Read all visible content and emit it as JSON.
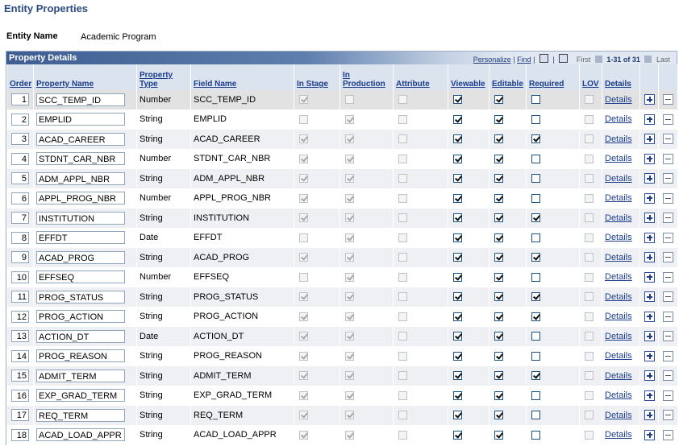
{
  "header": {
    "title": "Entity Properties",
    "entity_name_label": "Entity Name",
    "entity_name": "Academic Program"
  },
  "grid": {
    "title": "Property Details",
    "toolbar": {
      "personalize": "Personalize",
      "separator": "|",
      "find": "Find",
      "first": "First",
      "range": "1-31 of 31",
      "last": "Last"
    },
    "columns": [
      "Order",
      "Property Name",
      "Property Type",
      "Field Name",
      "In Stage",
      "In Production",
      "Attribute",
      "Viewable",
      "Editable",
      "Required",
      "LOV",
      "Details"
    ],
    "rows": [
      {
        "order": 1,
        "name": "SCC_TEMP_ID",
        "type": "Number",
        "field": "SCC_TEMP_ID",
        "flags": [
          true,
          false,
          false,
          true,
          true,
          false,
          false
        ],
        "details": "Details"
      },
      {
        "order": 2,
        "name": "EMPLID",
        "type": "String",
        "field": "EMPLID",
        "flags": [
          false,
          true,
          false,
          true,
          true,
          false,
          false
        ],
        "details": "Details"
      },
      {
        "order": 3,
        "name": "ACAD_CAREER",
        "type": "String",
        "field": "ACAD_CAREER",
        "flags": [
          true,
          true,
          false,
          true,
          true,
          true,
          false
        ],
        "details": "Details"
      },
      {
        "order": 4,
        "name": "STDNT_CAR_NBR",
        "type": "Number",
        "field": "STDNT_CAR_NBR",
        "flags": [
          true,
          true,
          false,
          true,
          true,
          false,
          false
        ],
        "details": "Details"
      },
      {
        "order": 5,
        "name": "ADM_APPL_NBR",
        "type": "String",
        "field": "ADM_APPL_NBR",
        "flags": [
          true,
          true,
          false,
          true,
          true,
          false,
          false
        ],
        "details": "Details"
      },
      {
        "order": 6,
        "name": "APPL_PROG_NBR",
        "type": "Number",
        "field": "APPL_PROG_NBR",
        "flags": [
          true,
          true,
          false,
          true,
          true,
          false,
          false
        ],
        "details": "Details"
      },
      {
        "order": 7,
        "name": "INSTITUTION",
        "type": "String",
        "field": "INSTITUTION",
        "flags": [
          true,
          true,
          false,
          true,
          true,
          true,
          false
        ],
        "details": "Details"
      },
      {
        "order": 8,
        "name": "EFFDT",
        "type": "Date",
        "field": "EFFDT",
        "flags": [
          false,
          true,
          false,
          true,
          true,
          false,
          false
        ],
        "details": "Details"
      },
      {
        "order": 9,
        "name": "ACAD_PROG",
        "type": "String",
        "field": "ACAD_PROG",
        "flags": [
          true,
          true,
          false,
          true,
          true,
          true,
          false
        ],
        "details": "Details"
      },
      {
        "order": 10,
        "name": "EFFSEQ",
        "type": "Number",
        "field": "EFFSEQ",
        "flags": [
          false,
          true,
          false,
          true,
          true,
          false,
          false
        ],
        "details": "Details"
      },
      {
        "order": 11,
        "name": "PROG_STATUS",
        "type": "String",
        "field": "PROG_STATUS",
        "flags": [
          true,
          true,
          false,
          true,
          true,
          true,
          false
        ],
        "details": "Details"
      },
      {
        "order": 12,
        "name": "PROG_ACTION",
        "type": "String",
        "field": "PROG_ACTION",
        "flags": [
          true,
          true,
          false,
          true,
          true,
          true,
          false
        ],
        "details": "Details"
      },
      {
        "order": 13,
        "name": "ACTION_DT",
        "type": "Date",
        "field": "ACTION_DT",
        "flags": [
          true,
          true,
          false,
          true,
          true,
          false,
          false
        ],
        "details": "Details"
      },
      {
        "order": 14,
        "name": "PROG_REASON",
        "type": "String",
        "field": "PROG_REASON",
        "flags": [
          true,
          true,
          false,
          true,
          true,
          false,
          false
        ],
        "details": "Details"
      },
      {
        "order": 15,
        "name": "ADMIT_TERM",
        "type": "String",
        "field": "ADMIT_TERM",
        "flags": [
          true,
          true,
          false,
          true,
          true,
          true,
          false
        ],
        "details": "Details"
      },
      {
        "order": 16,
        "name": "EXP_GRAD_TERM",
        "type": "String",
        "field": "EXP_GRAD_TERM",
        "flags": [
          true,
          true,
          false,
          true,
          true,
          false,
          false
        ],
        "details": "Details"
      },
      {
        "order": 17,
        "name": "REQ_TERM",
        "type": "String",
        "field": "REQ_TERM",
        "flags": [
          true,
          true,
          false,
          true,
          true,
          false,
          false
        ],
        "details": "Details"
      },
      {
        "order": 18,
        "name": "ACAD_LOAD_APPR",
        "type": "String",
        "field": "ACAD_LOAD_APPR",
        "flags": [
          true,
          true,
          false,
          true,
          true,
          false,
          false
        ],
        "details": "Details"
      }
    ]
  }
}
